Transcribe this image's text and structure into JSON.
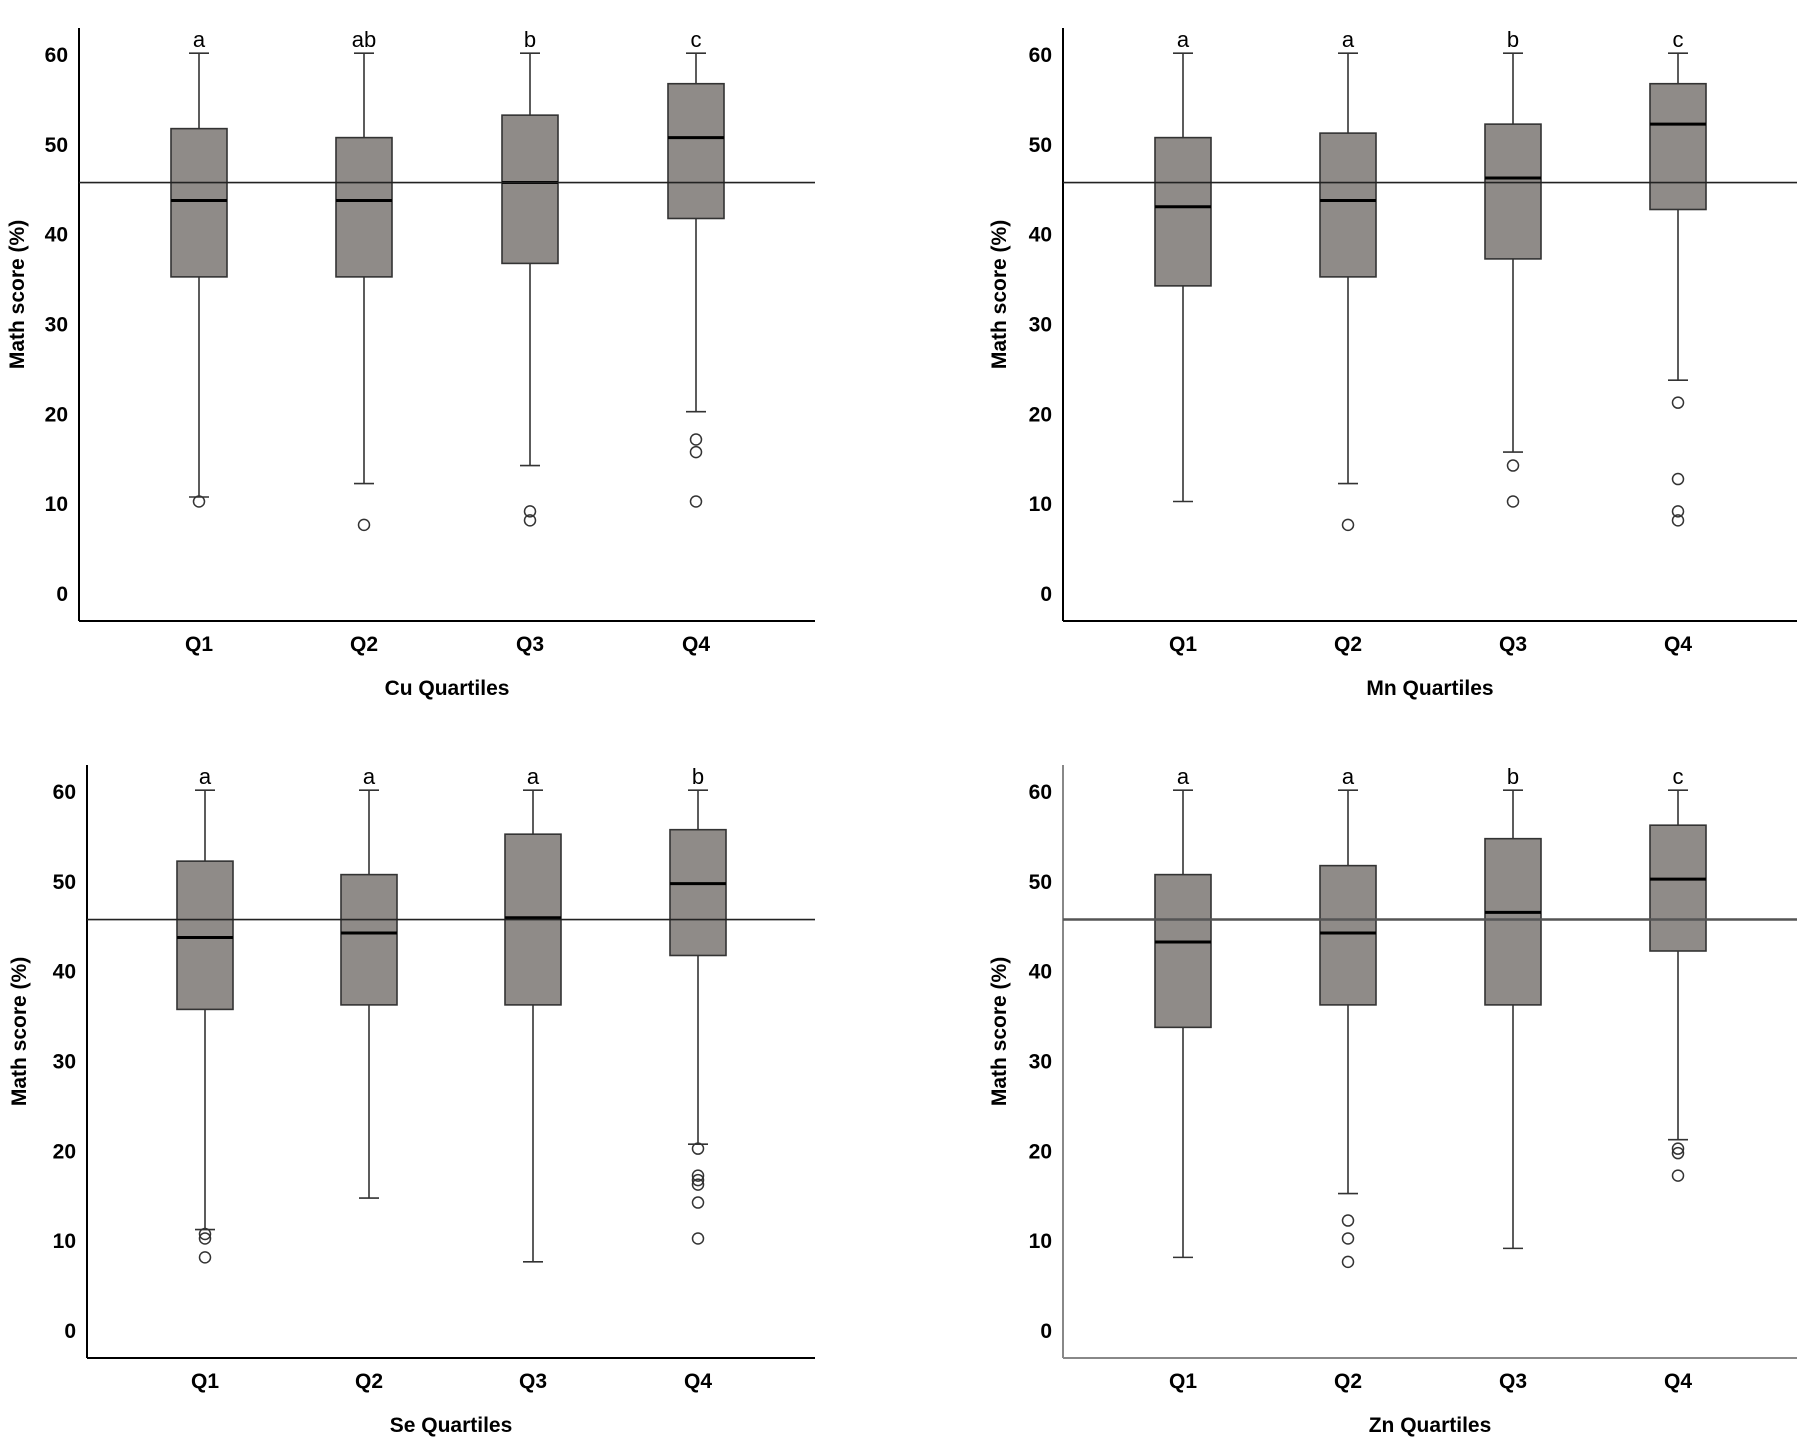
{
  "chart_data": [
    {
      "type": "boxplot",
      "xlabel": "Cu Quartiles",
      "ylabel": "Math score (%)",
      "ylim": [
        -3,
        63
      ],
      "yticks": [
        0,
        10,
        20,
        30,
        40,
        50,
        60
      ],
      "reference_line": 45.8,
      "categories": [
        "Q1",
        "Q2",
        "Q3",
        "Q4"
      ],
      "boxes": [
        {
          "label": "Q1",
          "whisker_low": 10.8,
          "q1": 35.3,
          "median": 43.8,
          "q3": 51.8,
          "whisker_high": 60.2,
          "outliers": [
            10.3
          ],
          "letter": "a"
        },
        {
          "label": "Q2",
          "whisker_low": 12.3,
          "q1": 35.3,
          "median": 43.8,
          "q3": 50.8,
          "whisker_high": 60.2,
          "outliers": [
            7.7
          ],
          "letter": "ab"
        },
        {
          "label": "Q3",
          "whisker_low": 14.3,
          "q1": 36.8,
          "median": 45.8,
          "q3": 53.3,
          "whisker_high": 60.2,
          "outliers": [
            9.2,
            8.2
          ],
          "letter": "b"
        },
        {
          "label": "Q4",
          "whisker_low": 20.3,
          "q1": 41.8,
          "median": 50.8,
          "q3": 56.8,
          "whisker_high": 60.2,
          "outliers": [
            17.2,
            15.8,
            10.3
          ],
          "letter": "c"
        }
      ]
    },
    {
      "type": "boxplot",
      "xlabel": "Mn Quartiles",
      "ylabel": "Math score (%)",
      "ylim": [
        -3,
        63
      ],
      "yticks": [
        0,
        10,
        20,
        30,
        40,
        50,
        60
      ],
      "reference_line": 45.8,
      "categories": [
        "Q1",
        "Q2",
        "Q3",
        "Q4"
      ],
      "boxes": [
        {
          "label": "Q1",
          "whisker_low": 10.3,
          "q1": 34.3,
          "median": 43.1,
          "q3": 50.8,
          "whisker_high": 60.2,
          "outliers": [],
          "letter": "a"
        },
        {
          "label": "Q2",
          "whisker_low": 12.3,
          "q1": 35.3,
          "median": 43.8,
          "q3": 51.3,
          "whisker_high": 60.2,
          "outliers": [
            7.7
          ],
          "letter": "a"
        },
        {
          "label": "Q3",
          "whisker_low": 15.8,
          "q1": 37.3,
          "median": 46.3,
          "q3": 52.3,
          "whisker_high": 60.2,
          "outliers": [
            14.3,
            10.3
          ],
          "letter": "b"
        },
        {
          "label": "Q4",
          "whisker_low": 23.8,
          "q1": 42.8,
          "median": 52.3,
          "q3": 56.8,
          "whisker_high": 60.2,
          "outliers": [
            21.3,
            12.8,
            9.2,
            8.2
          ],
          "letter": "c"
        }
      ]
    },
    {
      "type": "boxplot",
      "xlabel": "Se Quartiles",
      "ylabel": "Math score (%)",
      "ylim": [
        -3,
        63
      ],
      "yticks": [
        0,
        10,
        20,
        30,
        40,
        50,
        60
      ],
      "reference_line": 45.8,
      "categories": [
        "Q1",
        "Q2",
        "Q3",
        "Q4"
      ],
      "boxes": [
        {
          "label": "Q1",
          "whisker_low": 11.3,
          "q1": 35.8,
          "median": 43.8,
          "q3": 52.3,
          "whisker_high": 60.2,
          "outliers": [
            10.8,
            10.3,
            8.2
          ],
          "letter": "a"
        },
        {
          "label": "Q2",
          "whisker_low": 14.8,
          "q1": 36.3,
          "median": 44.3,
          "q3": 50.8,
          "whisker_high": 60.2,
          "outliers": [],
          "letter": "a"
        },
        {
          "label": "Q3",
          "whisker_low": 7.7,
          "q1": 36.3,
          "median": 46.0,
          "q3": 55.3,
          "whisker_high": 60.2,
          "outliers": [],
          "letter": "a"
        },
        {
          "label": "Q4",
          "whisker_low": 20.8,
          "q1": 41.8,
          "median": 49.8,
          "q3": 55.8,
          "whisker_high": 60.2,
          "outliers": [
            20.3,
            17.3,
            16.8,
            16.3,
            14.3,
            10.3
          ],
          "letter": "b"
        }
      ]
    },
    {
      "type": "boxplot",
      "xlabel": "Zn Quartiles",
      "ylabel": "Math score (%)",
      "ylim": [
        -3,
        63
      ],
      "yticks": [
        0,
        10,
        20,
        30,
        40,
        50,
        60
      ],
      "reference_line": 45.8,
      "categories": [
        "Q1",
        "Q2",
        "Q3",
        "Q4"
      ],
      "boxes": [
        {
          "label": "Q1",
          "whisker_low": 8.2,
          "q1": 33.8,
          "median": 43.3,
          "q3": 50.8,
          "whisker_high": 60.2,
          "outliers": [],
          "letter": "a"
        },
        {
          "label": "Q2",
          "whisker_low": 15.3,
          "q1": 36.3,
          "median": 44.3,
          "q3": 51.8,
          "whisker_high": 60.2,
          "outliers": [
            12.3,
            10.3,
            7.7
          ],
          "letter": "a"
        },
        {
          "label": "Q3",
          "whisker_low": 9.2,
          "q1": 36.3,
          "median": 46.6,
          "q3": 54.8,
          "whisker_high": 60.2,
          "outliers": [],
          "letter": "b"
        },
        {
          "label": "Q4",
          "whisker_low": 21.3,
          "q1": 42.3,
          "median": 50.3,
          "q3": 56.3,
          "whisker_high": 60.2,
          "outliers": [
            20.3,
            19.8,
            17.3
          ],
          "letter": "c"
        }
      ]
    }
  ]
}
